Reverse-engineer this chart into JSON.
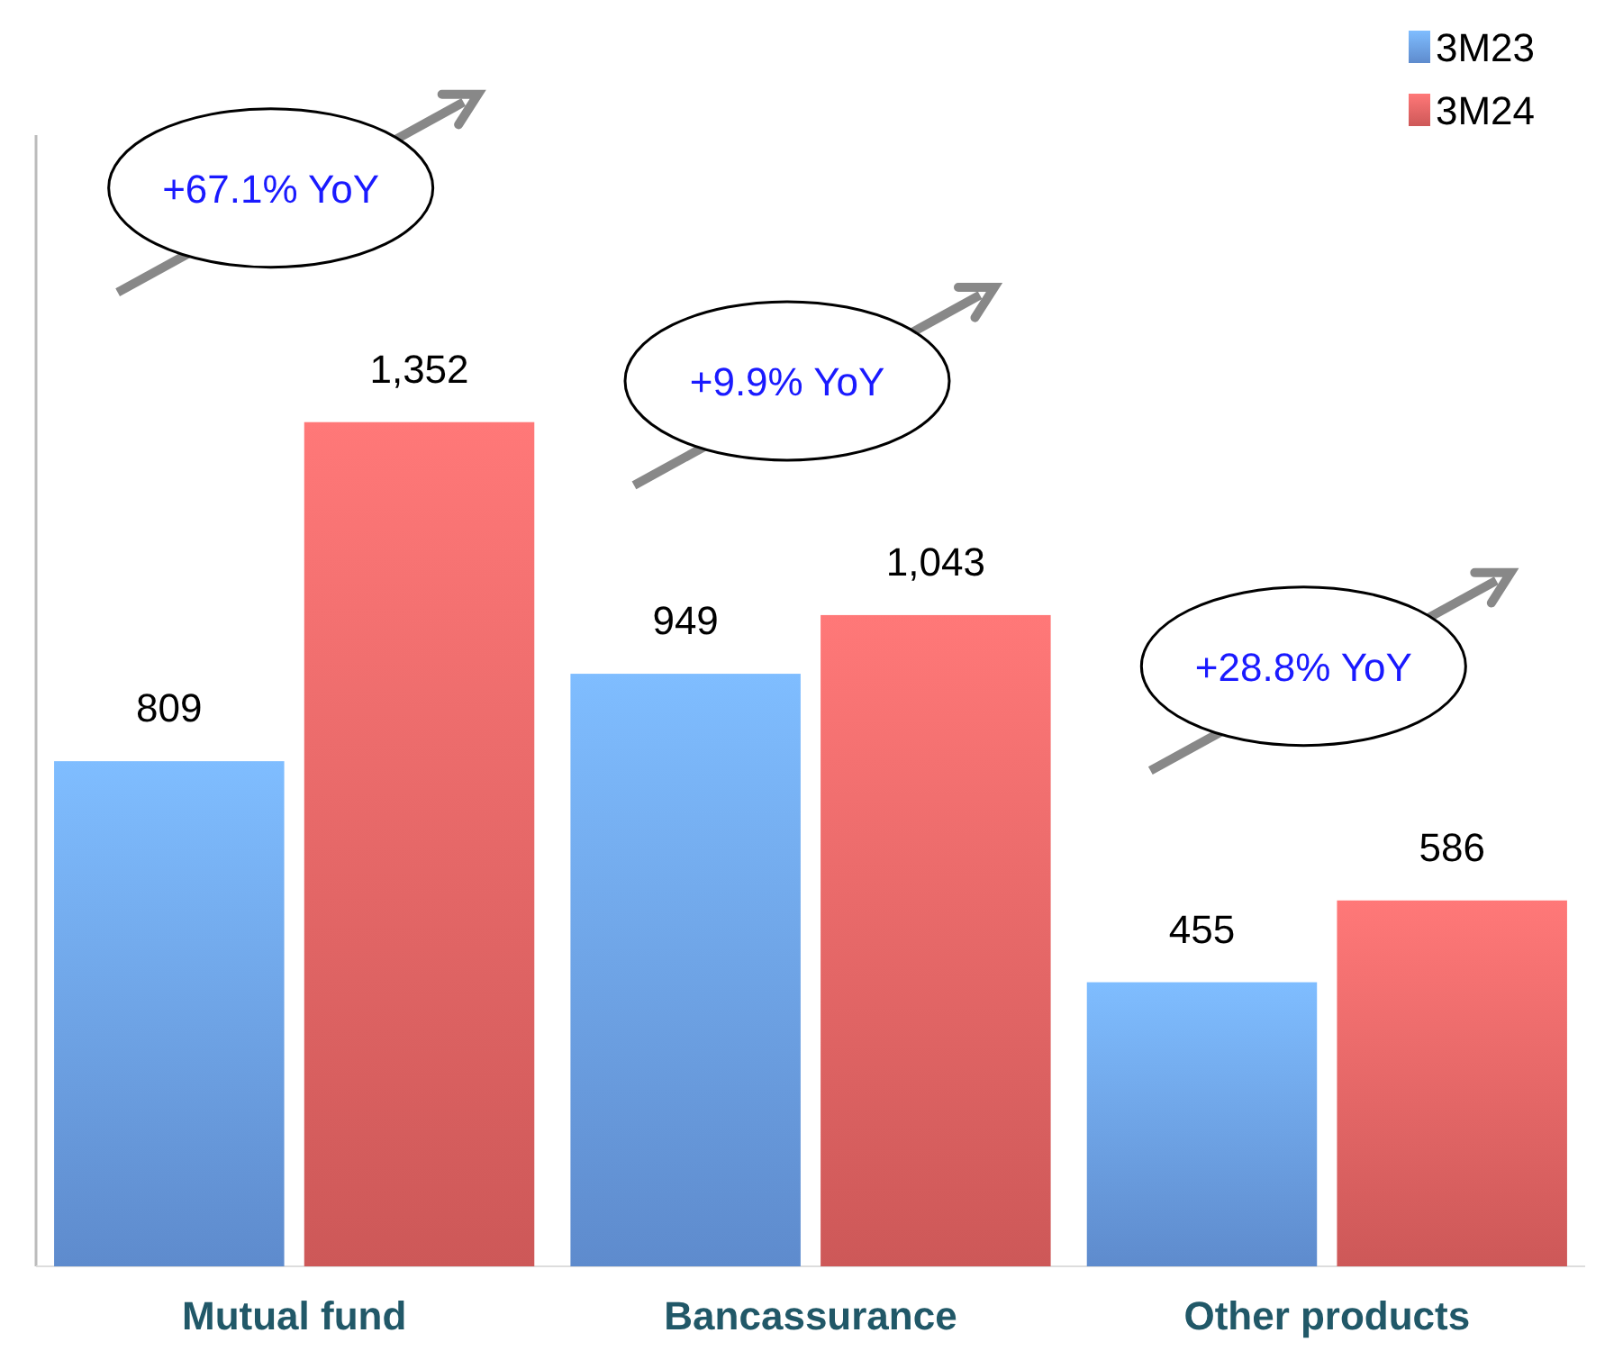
{
  "chart_data": {
    "type": "bar",
    "categories": [
      "Mutual fund",
      "Bancassurance",
      "Other products"
    ],
    "series": [
      {
        "name": "3M23",
        "color": "#6a9ee8",
        "values": [
          809,
          949,
          455
        ],
        "value_labels": [
          "809",
          "949",
          "455"
        ]
      },
      {
        "name": "3M24",
        "color": "#e86464",
        "values": [
          1352,
          1043,
          586
        ],
        "value_labels": [
          "1,352",
          "1,043",
          "586"
        ]
      }
    ],
    "legend": "top right",
    "annotations": [
      "+67.1% YoY",
      "+9.9% YoY",
      "+28.8% YoY"
    ]
  }
}
